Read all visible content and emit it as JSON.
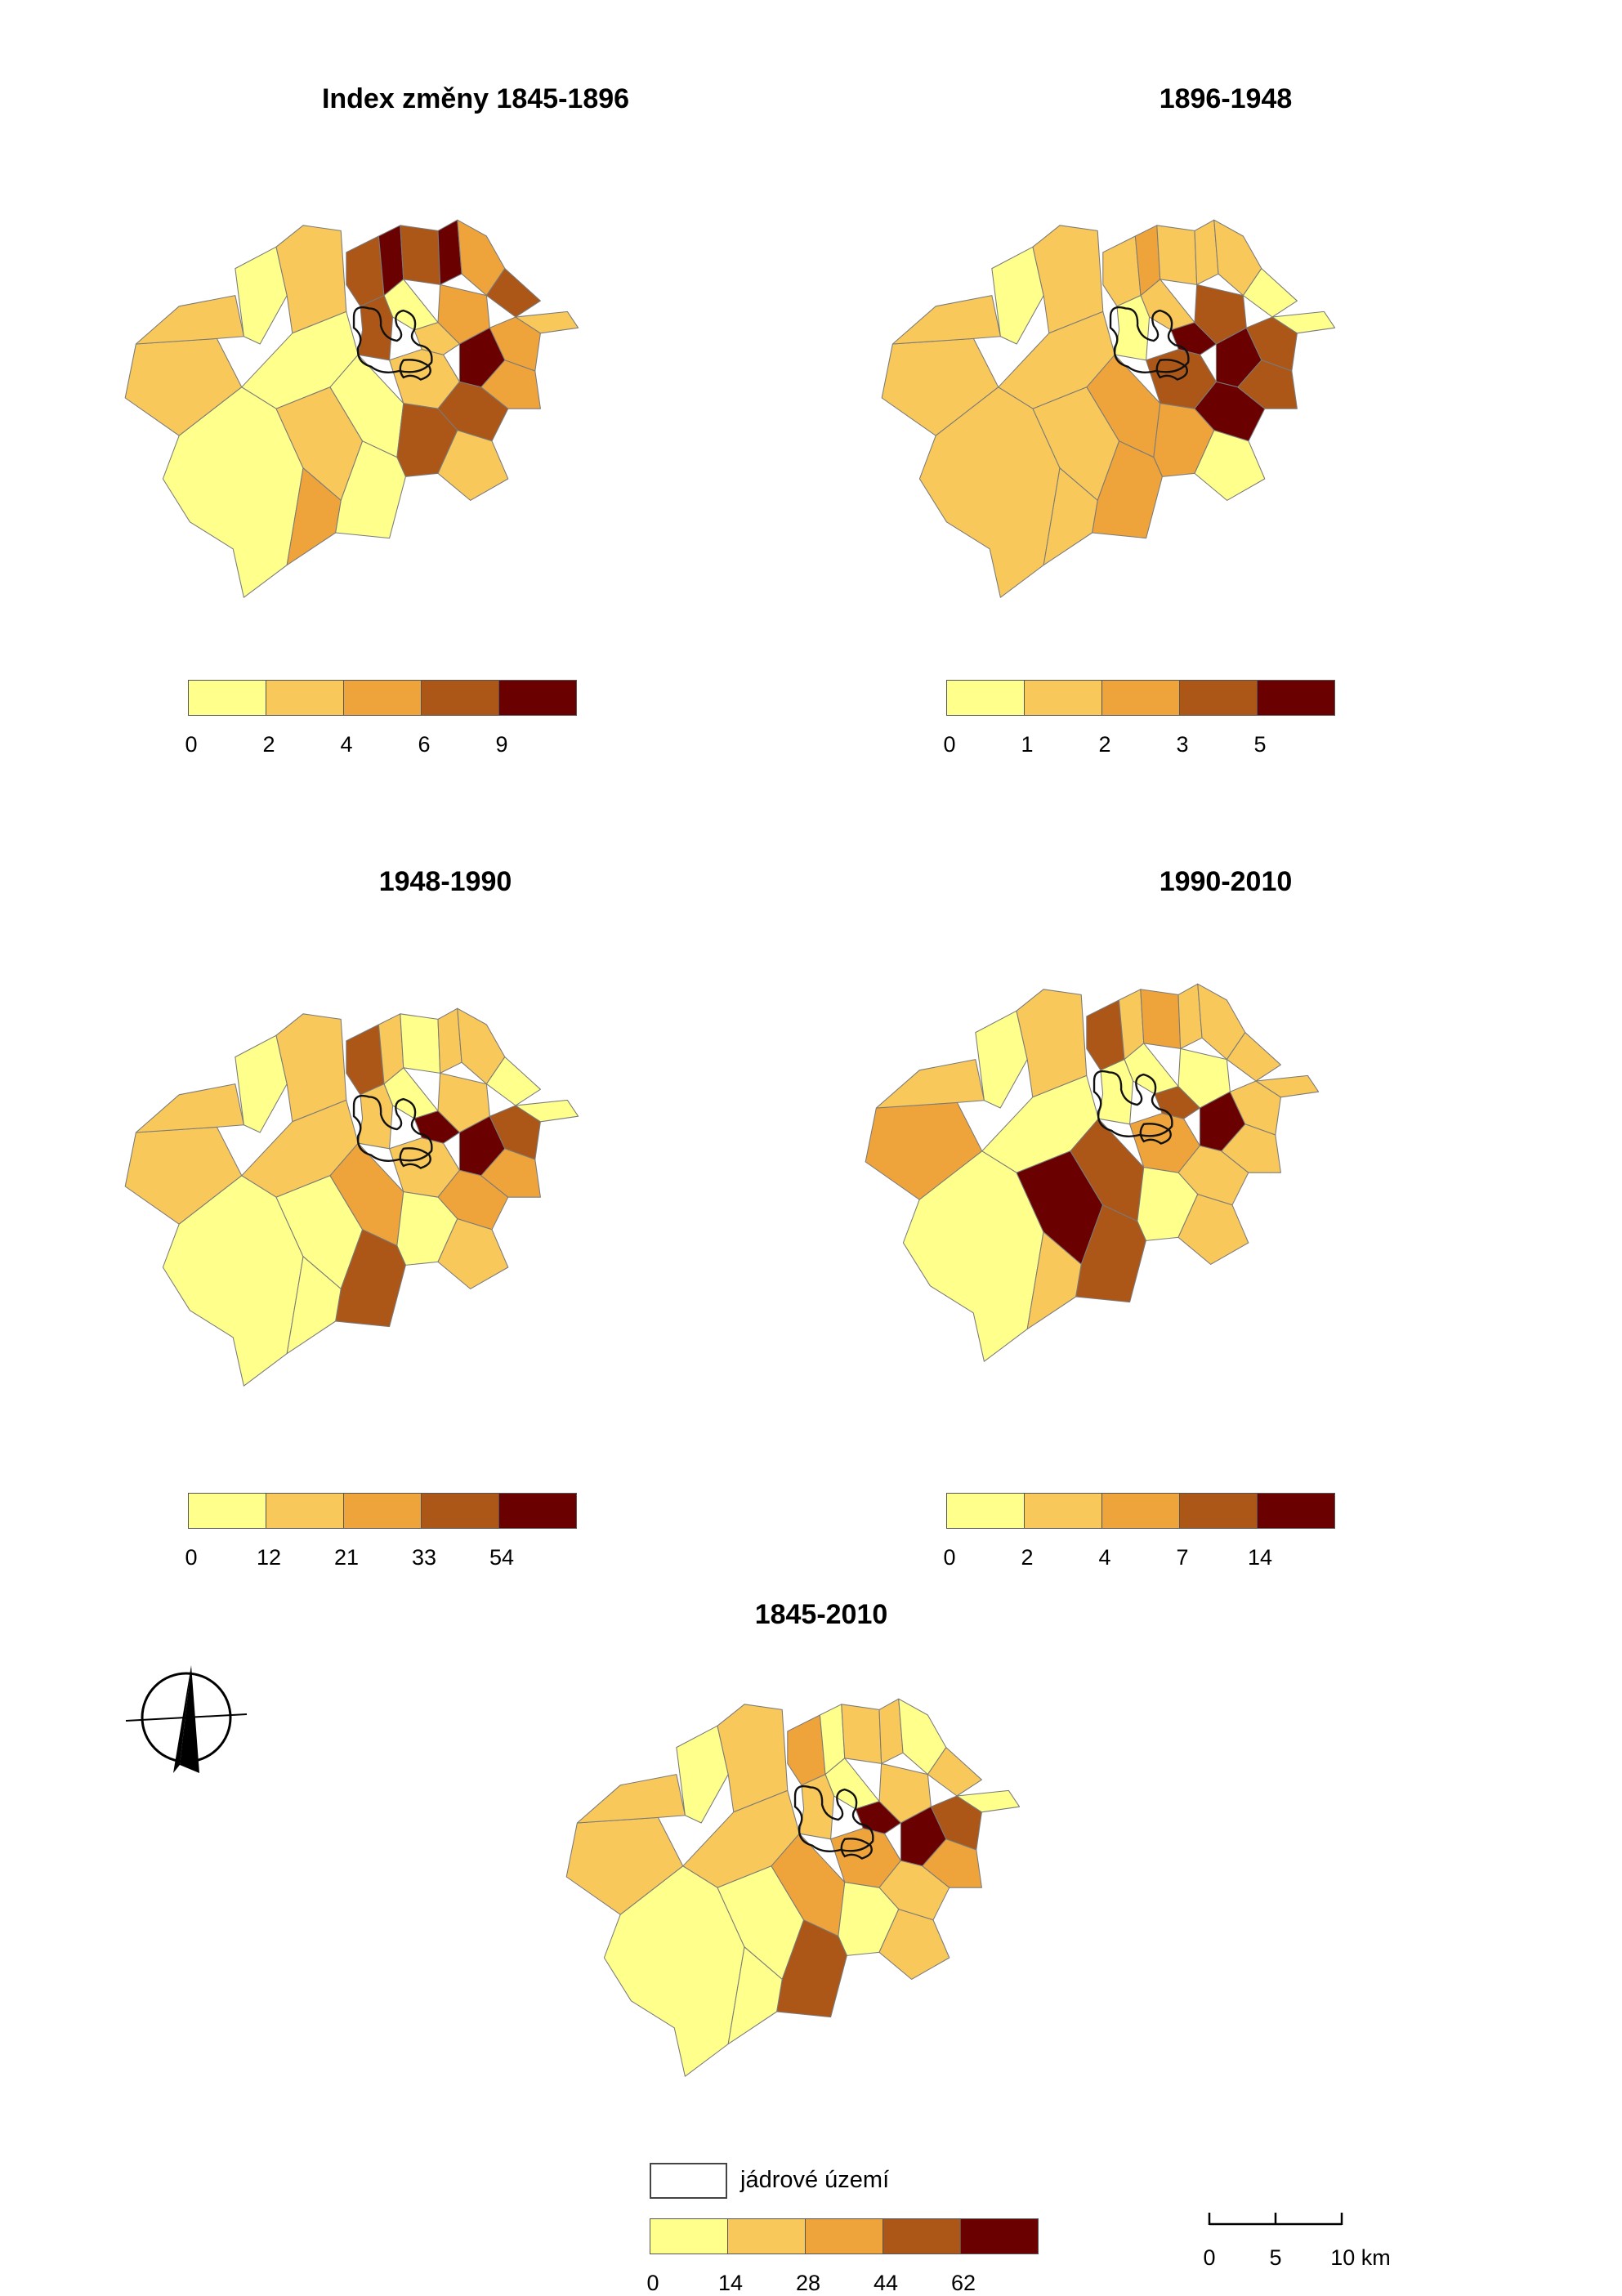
{
  "colors": {
    "class1": "#ffff8c",
    "class2": "#f8c85a",
    "class3": "#eea43a",
    "class4": "#ac5618",
    "class5": "#6a0000",
    "boundary": "#7a7a7a",
    "core_outline": "#111111"
  },
  "panels": [
    {
      "title": "Index změny 1845-1896",
      "legend_breaks": [
        "0",
        "2",
        "4",
        "6",
        "9"
      ],
      "region_classes": [
        2,
        2,
        1,
        2,
        4,
        5,
        4,
        5,
        3,
        4,
        3,
        1,
        2,
        4,
        5,
        3,
        2,
        1,
        2,
        4,
        3,
        1,
        2,
        1,
        4,
        2,
        1,
        3
      ]
    },
    {
      "title": "1896-1948",
      "legend_breaks": [
        "0",
        "1",
        "2",
        "3",
        "5"
      ],
      "region_classes": [
        2,
        2,
        1,
        2,
        2,
        3,
        2,
        2,
        2,
        1,
        4,
        2,
        5,
        1,
        5,
        4,
        1,
        2,
        4,
        5,
        4,
        2,
        2,
        3,
        3,
        1,
        3,
        2
      ]
    },
    {
      "title": "1948-1990",
      "legend_breaks": [
        "0",
        "12",
        "21",
        "33",
        "54"
      ],
      "region_classes": [
        2,
        2,
        1,
        2,
        4,
        2,
        1,
        2,
        2,
        1,
        2,
        1,
        5,
        2,
        5,
        4,
        1,
        2,
        2,
        3,
        3,
        1,
        1,
        3,
        1,
        2,
        4,
        1
      ]
    },
    {
      "title": "1990-2010",
      "legend_breaks": [
        "0",
        "2",
        "4",
        "7",
        "14"
      ],
      "region_classes": [
        3,
        2,
        1,
        2,
        4,
        2,
        3,
        2,
        2,
        2,
        1,
        1,
        4,
        1,
        5,
        2,
        2,
        1,
        3,
        2,
        2,
        1,
        5,
        4,
        1,
        2,
        4,
        2
      ]
    },
    {
      "title": "1845-2010",
      "legend_breaks": [
        "0",
        "14",
        "28",
        "44",
        "62"
      ],
      "region_classes": [
        2,
        2,
        1,
        2,
        3,
        1,
        2,
        2,
        1,
        2,
        2,
        1,
        5,
        2,
        5,
        4,
        1,
        2,
        3,
        2,
        3,
        1,
        1,
        3,
        1,
        2,
        4,
        1
      ]
    }
  ],
  "core_legend_label": "jádrové území",
  "north_arrow": "north-arrow-icon",
  "scale_bar": {
    "ticks": [
      "0",
      "5",
      "10 km"
    ]
  }
}
